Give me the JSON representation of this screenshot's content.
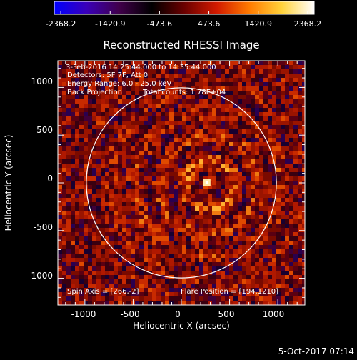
{
  "colorbar": {
    "ticks": [
      "-2368.2",
      "-1420.9",
      "-473.6",
      "473.6",
      "1420.9",
      "2368.2"
    ],
    "colormap": [
      "#0000ff",
      "#3a00b8",
      "#40004a",
      "#000000",
      "#6a0000",
      "#d21a00",
      "#ff7a00",
      "#ffd23a",
      "#ffffff"
    ]
  },
  "title": "Reconstructed RHESSI Image",
  "info": {
    "line1": "3-Feb-2016 14:25:44.000 to 14:35:44.000",
    "line2": "Detectors: 5F 7F, Att 0",
    "line3": "Energy Range: 6.0 - 25.0 keV",
    "line4_left": "Back Projection",
    "line4_right": "Total counts: 1.78E+04",
    "spin_axis": "Spin Axis = [266,-2]",
    "flare_position": "Flare Position = [194,1210]"
  },
  "axes": {
    "xlabel": "Heliocentric X (arcsec)",
    "ylabel": "Heliocentric Y (arcsec)",
    "xticks": [
      "-1000",
      "-500",
      "0",
      "500",
      "1000"
    ],
    "yticks": [
      "1000",
      "500",
      "0",
      "-500",
      "-1000"
    ],
    "xlim": [
      -1280,
      1280
    ],
    "ylim": [
      -1280,
      1280
    ]
  },
  "solar_limb_radius_arcsec": 985,
  "bright_source_arcsec": [
    265,
    5
  ],
  "footer_date": "5-Oct-2017 07:14"
}
